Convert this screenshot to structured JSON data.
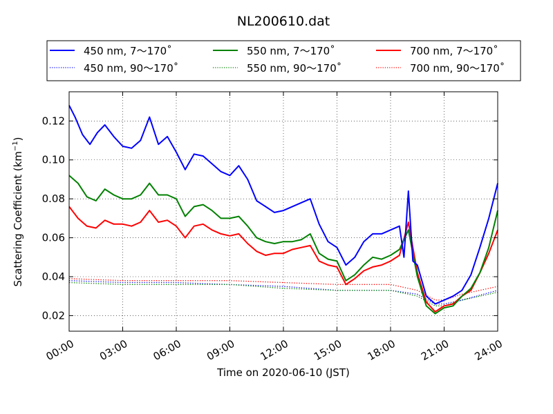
{
  "chart_data": {
    "type": "line",
    "title": "NL200610.dat",
    "xlabel": "Time on 2020-06-10 (JST)",
    "ylabel_main": "Scattering Coefficient (km",
    "ylabel_sup": "−1",
    "ylabel_close": ")",
    "xlim": [
      "2020-06-10 00:00",
      "2020-06-11 00:00"
    ],
    "ylim": [
      0.012,
      0.135
    ],
    "grid": true,
    "legend_position": "top",
    "x_ticks": [
      "00:00",
      "03:00",
      "06:00",
      "09:00",
      "12:00",
      "15:00",
      "18:00",
      "21:00",
      "24:00"
    ],
    "x_tick_hours": [
      0,
      3,
      6,
      9,
      12,
      15,
      18,
      21,
      24
    ],
    "y_ticks": [
      "0.02",
      "0.04",
      "0.06",
      "0.08",
      "0.10",
      "0.12"
    ],
    "y_tick_values": [
      0.02,
      0.04,
      0.06,
      0.08,
      0.1,
      0.12
    ],
    "series": [
      {
        "name": "450 nm, 7～170˚",
        "color": "#0000ff",
        "style": "solid",
        "points": [
          [
            "00:00",
            0.128
          ],
          [
            "00:20",
            0.122
          ],
          [
            "00:45",
            0.113
          ],
          [
            "01:10",
            0.108
          ],
          [
            "01:35",
            0.114
          ],
          [
            "02:00",
            0.118
          ],
          [
            "02:30",
            0.112
          ],
          [
            "03:00",
            0.107
          ],
          [
            "03:30",
            0.106
          ],
          [
            "04:00",
            0.11
          ],
          [
            "04:30",
            0.122
          ],
          [
            "05:00",
            0.108
          ],
          [
            "05:30",
            0.112
          ],
          [
            "06:00",
            0.104
          ],
          [
            "06:30",
            0.095
          ],
          [
            "07:00",
            0.103
          ],
          [
            "07:30",
            0.102
          ],
          [
            "08:00",
            0.098
          ],
          [
            "08:30",
            0.094
          ],
          [
            "09:00",
            0.092
          ],
          [
            "09:30",
            0.097
          ],
          [
            "10:00",
            0.09
          ],
          [
            "10:30",
            0.079
          ],
          [
            "11:00",
            0.076
          ],
          [
            "11:30",
            0.073
          ],
          [
            "12:00",
            0.074
          ],
          [
            "12:30",
            0.076
          ],
          [
            "13:00",
            0.078
          ],
          [
            "13:30",
            0.08
          ],
          [
            "14:00",
            0.067
          ],
          [
            "14:30",
            0.058
          ],
          [
            "15:00",
            0.055
          ],
          [
            "15:30",
            0.046
          ],
          [
            "16:00",
            0.05
          ],
          [
            "16:30",
            0.058
          ],
          [
            "17:00",
            0.062
          ],
          [
            "17:30",
            0.062
          ],
          [
            "18:00",
            0.064
          ],
          [
            "18:30",
            0.066
          ],
          [
            "18:45",
            0.05
          ],
          [
            "19:00",
            0.084
          ],
          [
            "19:15",
            0.048
          ],
          [
            "19:30",
            0.046
          ],
          [
            "20:00",
            0.03
          ],
          [
            "20:30",
            0.026
          ],
          [
            "21:00",
            0.028
          ],
          [
            "21:30",
            0.03
          ],
          [
            "22:00",
            0.033
          ],
          [
            "22:30",
            0.041
          ],
          [
            "23:00",
            0.055
          ],
          [
            "23:30",
            0.07
          ],
          [
            "24:00",
            0.088
          ]
        ]
      },
      {
        "name": "450 nm, 90～170˚",
        "color": "#0000ff",
        "style": "dotted",
        "points": [
          [
            "00:00",
            0.038
          ],
          [
            "03:00",
            0.037
          ],
          [
            "06:00",
            0.037
          ],
          [
            "09:00",
            0.036
          ],
          [
            "12:00",
            0.035
          ],
          [
            "15:00",
            0.033
          ],
          [
            "18:00",
            0.033
          ],
          [
            "19:30",
            0.031
          ],
          [
            "20:30",
            0.026
          ],
          [
            "21:00",
            0.026
          ],
          [
            "22:00",
            0.028
          ],
          [
            "24:00",
            0.033
          ]
        ]
      },
      {
        "name": "550 nm, 7～170˚",
        "color": "#008000",
        "style": "solid",
        "points": [
          [
            "00:00",
            0.092
          ],
          [
            "00:30",
            0.088
          ],
          [
            "01:00",
            0.081
          ],
          [
            "01:30",
            0.079
          ],
          [
            "02:00",
            0.085
          ],
          [
            "02:30",
            0.082
          ],
          [
            "03:00",
            0.08
          ],
          [
            "03:30",
            0.08
          ],
          [
            "04:00",
            0.082
          ],
          [
            "04:30",
            0.088
          ],
          [
            "05:00",
            0.082
          ],
          [
            "05:30",
            0.082
          ],
          [
            "06:00",
            0.08
          ],
          [
            "06:30",
            0.071
          ],
          [
            "07:00",
            0.076
          ],
          [
            "07:30",
            0.077
          ],
          [
            "08:00",
            0.074
          ],
          [
            "08:30",
            0.07
          ],
          [
            "09:00",
            0.07
          ],
          [
            "09:30",
            0.071
          ],
          [
            "10:00",
            0.066
          ],
          [
            "10:30",
            0.06
          ],
          [
            "11:00",
            0.058
          ],
          [
            "11:30",
            0.057
          ],
          [
            "12:00",
            0.058
          ],
          [
            "12:30",
            0.058
          ],
          [
            "13:00",
            0.059
          ],
          [
            "13:30",
            0.062
          ],
          [
            "14:00",
            0.052
          ],
          [
            "14:30",
            0.049
          ],
          [
            "15:00",
            0.048
          ],
          [
            "15:30",
            0.038
          ],
          [
            "16:00",
            0.041
          ],
          [
            "16:30",
            0.046
          ],
          [
            "17:00",
            0.05
          ],
          [
            "17:30",
            0.049
          ],
          [
            "18:00",
            0.051
          ],
          [
            "18:30",
            0.054
          ],
          [
            "19:00",
            0.064
          ],
          [
            "19:30",
            0.04
          ],
          [
            "20:00",
            0.025
          ],
          [
            "20:30",
            0.021
          ],
          [
            "21:00",
            0.024
          ],
          [
            "21:30",
            0.025
          ],
          [
            "22:00",
            0.03
          ],
          [
            "22:30",
            0.034
          ],
          [
            "23:00",
            0.042
          ],
          [
            "23:30",
            0.055
          ],
          [
            "24:00",
            0.074
          ]
        ]
      },
      {
        "name": "550 nm, 90～170˚",
        "color": "#008000",
        "style": "dotted",
        "points": [
          [
            "00:00",
            0.037
          ],
          [
            "03:00",
            0.036
          ],
          [
            "06:00",
            0.036
          ],
          [
            "09:00",
            0.036
          ],
          [
            "12:00",
            0.034
          ],
          [
            "15:00",
            0.033
          ],
          [
            "18:00",
            0.033
          ],
          [
            "19:30",
            0.03
          ],
          [
            "20:30",
            0.025
          ],
          [
            "21:00",
            0.025
          ],
          [
            "22:00",
            0.028
          ],
          [
            "24:00",
            0.032
          ]
        ]
      },
      {
        "name": "700 nm, 7～170˚",
        "color": "#ff0000",
        "style": "solid",
        "points": [
          [
            "00:00",
            0.076
          ],
          [
            "00:30",
            0.07
          ],
          [
            "01:00",
            0.066
          ],
          [
            "01:30",
            0.065
          ],
          [
            "02:00",
            0.069
          ],
          [
            "02:30",
            0.067
          ],
          [
            "03:00",
            0.067
          ],
          [
            "03:30",
            0.066
          ],
          [
            "04:00",
            0.068
          ],
          [
            "04:30",
            0.074
          ],
          [
            "05:00",
            0.068
          ],
          [
            "05:30",
            0.069
          ],
          [
            "06:00",
            0.066
          ],
          [
            "06:30",
            0.06
          ],
          [
            "07:00",
            0.066
          ],
          [
            "07:30",
            0.067
          ],
          [
            "08:00",
            0.064
          ],
          [
            "08:30",
            0.062
          ],
          [
            "09:00",
            0.061
          ],
          [
            "09:30",
            0.062
          ],
          [
            "10:00",
            0.057
          ],
          [
            "10:30",
            0.053
          ],
          [
            "11:00",
            0.051
          ],
          [
            "11:30",
            0.052
          ],
          [
            "12:00",
            0.052
          ],
          [
            "12:30",
            0.054
          ],
          [
            "13:00",
            0.055
          ],
          [
            "13:30",
            0.056
          ],
          [
            "14:00",
            0.048
          ],
          [
            "14:30",
            0.046
          ],
          [
            "15:00",
            0.045
          ],
          [
            "15:30",
            0.036
          ],
          [
            "16:00",
            0.039
          ],
          [
            "16:30",
            0.043
          ],
          [
            "17:00",
            0.045
          ],
          [
            "17:30",
            0.046
          ],
          [
            "18:00",
            0.048
          ],
          [
            "18:30",
            0.051
          ],
          [
            "19:00",
            0.068
          ],
          [
            "19:30",
            0.042
          ],
          [
            "20:00",
            0.027
          ],
          [
            "20:30",
            0.022
          ],
          [
            "21:00",
            0.025
          ],
          [
            "21:30",
            0.026
          ],
          [
            "22:00",
            0.03
          ],
          [
            "22:30",
            0.033
          ],
          [
            "23:00",
            0.042
          ],
          [
            "23:30",
            0.052
          ],
          [
            "24:00",
            0.064
          ]
        ]
      },
      {
        "name": "700 nm, 90～170˚",
        "color": "#ff0000",
        "style": "dotted",
        "points": [
          [
            "00:00",
            0.039
          ],
          [
            "03:00",
            0.038
          ],
          [
            "06:00",
            0.038
          ],
          [
            "09:00",
            0.038
          ],
          [
            "12:00",
            0.037
          ],
          [
            "15:00",
            0.036
          ],
          [
            "18:00",
            0.036
          ],
          [
            "19:30",
            0.033
          ],
          [
            "20:30",
            0.028
          ],
          [
            "21:00",
            0.028
          ],
          [
            "22:00",
            0.031
          ],
          [
            "24:00",
            0.035
          ]
        ]
      }
    ]
  }
}
